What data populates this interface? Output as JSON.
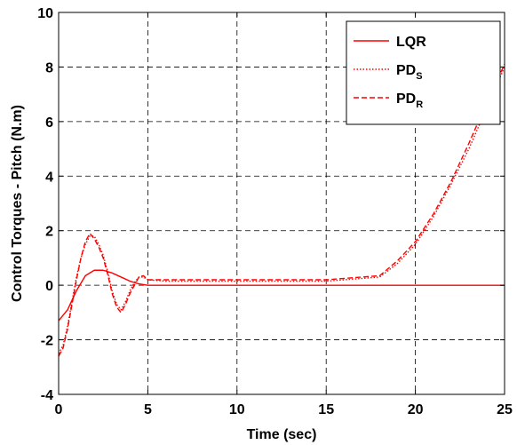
{
  "chart_data": {
    "type": "line",
    "xlabel": "Time (sec)",
    "ylabel": "Control Torques - Pitch (N.m)",
    "xlim": [
      0,
      25
    ],
    "ylim": [
      -4,
      10
    ],
    "xticks": [
      0,
      5,
      10,
      15,
      20,
      25
    ],
    "yticks": [
      -4,
      -2,
      0,
      2,
      4,
      6,
      8,
      10
    ],
    "xtick_labels": [
      "0",
      "5",
      "10",
      "15",
      "20",
      "25"
    ],
    "ytick_labels": [
      "-4",
      "-2",
      "0",
      "2",
      "4",
      "6",
      "8",
      "10"
    ],
    "grid": true,
    "legend_position": "top-right",
    "colors": {
      "series": "#ff0000",
      "axis": "#000000",
      "grid": "#000000"
    },
    "series": [
      {
        "name": "LQR",
        "base": "LQR",
        "sub": "",
        "style": "solid",
        "x": [
          0,
          0.5,
          1,
          1.5,
          2,
          2.5,
          3,
          3.5,
          4,
          4.5,
          5,
          6,
          8,
          10,
          15,
          20,
          25
        ],
        "y": [
          -1.3,
          -0.9,
          -0.2,
          0.35,
          0.55,
          0.55,
          0.45,
          0.3,
          0.15,
          0.05,
          0,
          0,
          0,
          0,
          0,
          0,
          0
        ]
      },
      {
        "name": "PDS",
        "base": "PD",
        "sub": "S",
        "style": "dotted",
        "x": [
          0,
          0.25,
          0.5,
          0.75,
          1,
          1.25,
          1.5,
          1.75,
          2,
          2.25,
          2.5,
          2.75,
          3,
          3.25,
          3.5,
          3.75,
          4,
          4.25,
          4.5,
          4.75,
          5,
          6,
          8,
          10,
          15,
          18,
          19,
          20,
          21,
          22,
          23,
          24,
          25
        ],
        "y": [
          -2.5,
          -2.2,
          -1.5,
          -0.6,
          0.3,
          1.0,
          1.5,
          1.8,
          1.8,
          1.5,
          1.1,
          0.5,
          -0.2,
          -0.7,
          -0.9,
          -0.6,
          -0.2,
          0.1,
          0.3,
          0.3,
          0.2,
          0.15,
          0.15,
          0.15,
          0.15,
          0.3,
          0.8,
          1.5,
          2.5,
          3.7,
          5.0,
          6.5,
          8.0
        ]
      },
      {
        "name": "PDR",
        "base": "PD",
        "sub": "R",
        "style": "dashed",
        "x": [
          0,
          0.25,
          0.5,
          0.75,
          1,
          1.25,
          1.5,
          1.75,
          2,
          2.25,
          2.5,
          2.75,
          3,
          3.25,
          3.5,
          3.75,
          4,
          4.25,
          4.5,
          4.75,
          5,
          6,
          8,
          10,
          15,
          18,
          19,
          20,
          21,
          22,
          23,
          24,
          25
        ],
        "y": [
          -2.6,
          -2.3,
          -1.6,
          -0.7,
          0.2,
          1.0,
          1.6,
          1.9,
          1.7,
          1.4,
          1.0,
          0.4,
          -0.3,
          -0.8,
          -1.0,
          -0.7,
          -0.3,
          0.0,
          0.3,
          0.35,
          0.2,
          0.2,
          0.2,
          0.2,
          0.2,
          0.35,
          0.9,
          1.6,
          2.6,
          3.8,
          5.2,
          6.7,
          8.1
        ]
      }
    ]
  }
}
